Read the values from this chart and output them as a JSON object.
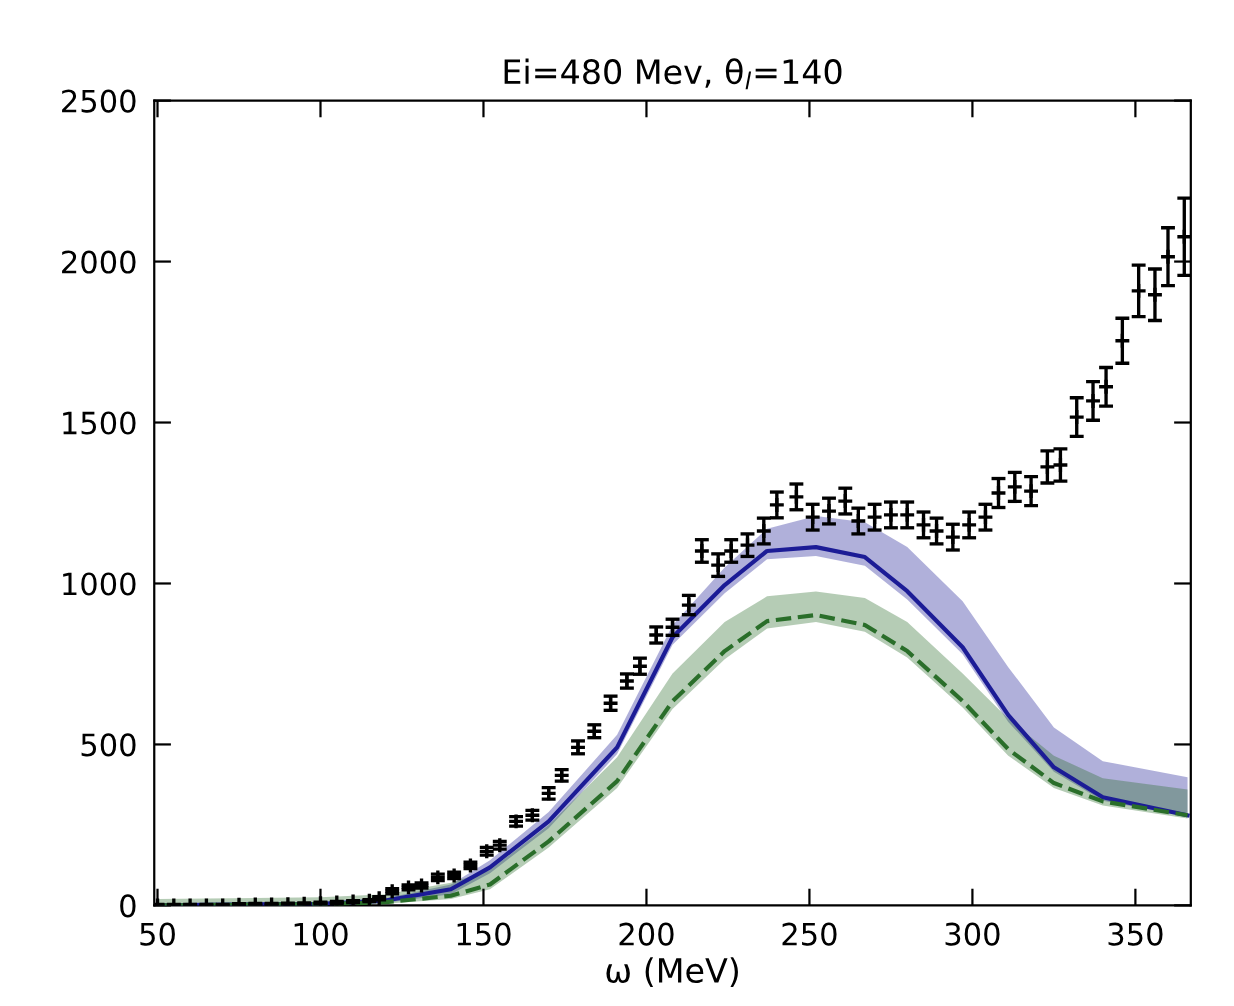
{
  "chart_data": {
    "type": "line",
    "title": "Ei=480 Mev, θ$_{l}$=140",
    "xlabel": "ω (MeV)",
    "xlim": [
      49,
      367
    ],
    "xticks": [
      50,
      100,
      150,
      200,
      250,
      300,
      350
    ],
    "ylim": [
      0,
      2500
    ],
    "yticks": [
      0,
      500,
      1000,
      1500,
      2000,
      2500
    ],
    "grid": false,
    "legend": false,
    "series": [
      {
        "color": "#1c1c96",
        "line_style": "solid",
        "x": [
          50,
          100,
          120,
          140,
          152,
          170,
          191,
          208,
          224,
          237,
          252,
          267,
          280,
          297,
          311,
          325,
          340,
          366
        ],
        "values": [
          0,
          5,
          15,
          50,
          118,
          261,
          491,
          833,
          995,
          1101,
          1113,
          1082,
          976,
          802,
          591,
          429,
          336,
          280
        ],
        "lower": [
          0,
          2,
          8,
          35,
          100,
          240,
          470,
          810,
          970,
          1075,
          1085,
          1055,
          950,
          780,
          570,
          415,
          325,
          275
        ],
        "upper": [
          0,
          8,
          22,
          65,
          140,
          290,
          530,
          870,
          1050,
          1170,
          1210,
          1190,
          1113,
          945,
          740,
          553,
          448,
          398
        ]
      },
      {
        "color": "#2a6e2a",
        "line_style": "dashed",
        "x": [
          50,
          100,
          120,
          140,
          152,
          170,
          191,
          208,
          224,
          237,
          252,
          267,
          280,
          297,
          311,
          325,
          340,
          366
        ],
        "values": [
          0,
          4,
          10,
          30,
          65,
          199,
          386,
          634,
          790,
          883,
          902,
          871,
          790,
          635,
          485,
          380,
          323,
          280
        ],
        "lower": [
          0,
          0,
          5,
          20,
          50,
          180,
          365,
          610,
          765,
          860,
          880,
          850,
          770,
          615,
          465,
          365,
          310,
          270
        ],
        "upper": [
          20,
          25,
          35,
          70,
          110,
          250,
          460,
          720,
          880,
          960,
          975,
          955,
          880,
          720,
          580,
          465,
          395,
          360
        ]
      },
      {
        "type": "scatter",
        "color": "#000000",
        "marker": "cross",
        "x": [
          50,
          55,
          60,
          65,
          70,
          75,
          80,
          85,
          90,
          95,
          100,
          105,
          110,
          115,
          118,
          122,
          127,
          131,
          136,
          141,
          146,
          151,
          155,
          160,
          165,
          170,
          174,
          179,
          184,
          189,
          194,
          198,
          203,
          208,
          213,
          217,
          222,
          226,
          231,
          236,
          240,
          246,
          251,
          256,
          261,
          265,
          270,
          275,
          280,
          285,
          289,
          294,
          299,
          304,
          308,
          313,
          318,
          323,
          327,
          332,
          337,
          341,
          346,
          351,
          356,
          360,
          365
        ],
        "values": [
          0,
          0,
          0,
          0,
          0,
          2,
          3,
          3,
          4,
          5,
          7,
          9,
          12,
          15,
          22,
          44,
          56,
          62,
          87,
          93,
          124,
          168,
          187,
          261,
          280,
          348,
          404,
          491,
          541,
          628,
          697,
          743,
          840,
          864,
          933,
          1101,
          1057,
          1101,
          1119,
          1163,
          1244,
          1269,
          1206,
          1225,
          1256,
          1194,
          1206,
          1213,
          1213,
          1182,
          1163,
          1144,
          1182,
          1206,
          1281,
          1300,
          1287,
          1362,
          1368,
          1517,
          1567,
          1611,
          1754,
          1909,
          1897,
          2015,
          2077
        ],
        "errors": [
          3,
          3,
          3,
          3,
          3,
          3,
          3,
          3,
          3,
          3,
          3,
          3,
          3,
          3,
          5,
          8,
          8,
          8,
          10,
          10,
          10,
          12,
          12,
          15,
          15,
          18,
          18,
          20,
          20,
          22,
          22,
          25,
          25,
          25,
          30,
          35,
          35,
          35,
          35,
          40,
          40,
          40,
          40,
          40,
          40,
          40,
          40,
          40,
          40,
          40,
          40,
          40,
          40,
          40,
          45,
          45,
          45,
          50,
          50,
          60,
          60,
          60,
          70,
          80,
          80,
          90,
          120
        ]
      }
    ]
  }
}
